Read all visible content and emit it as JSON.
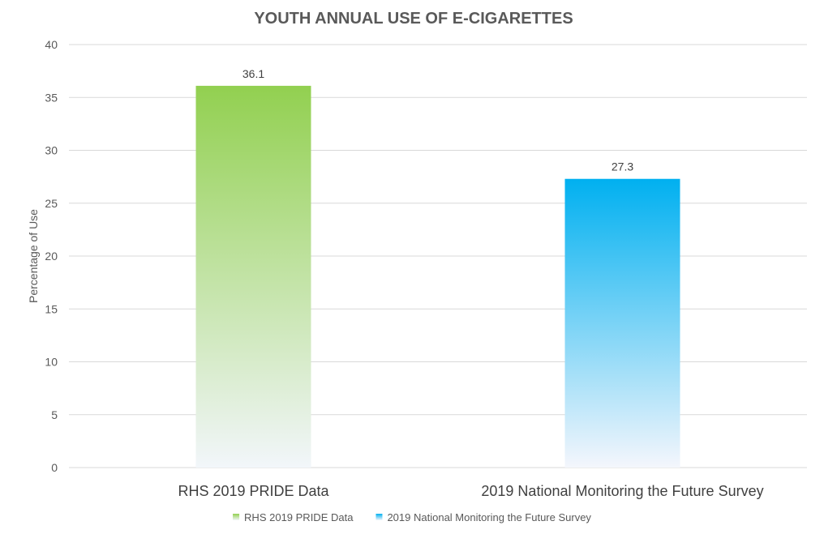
{
  "chart_data": {
    "type": "bar",
    "title": "YOUTH ANNUAL USE OF E-CIGARETTES",
    "ylabel": "Percentage of Use",
    "xlabel": "",
    "ylim": [
      0,
      40
    ],
    "yticks": [
      0,
      5,
      10,
      15,
      20,
      25,
      30,
      35,
      40
    ],
    "grid": true,
    "legend": "bottom",
    "categories": [
      "RHS 2019 PRIDE Data",
      "2019 National Monitoring the Future Survey"
    ],
    "values": [
      36.1,
      27.3
    ],
    "data_labels": [
      "36.1",
      "27.3"
    ],
    "legend_entries": [
      "RHS 2019 PRIDE Data",
      "2019 National Monitoring the Future Survey"
    ],
    "colors": [
      {
        "top": "#92d050",
        "bottom": "#f2f6fa"
      },
      {
        "top": "#00b0f0",
        "bottom": "#f4f6fc"
      }
    ]
  }
}
